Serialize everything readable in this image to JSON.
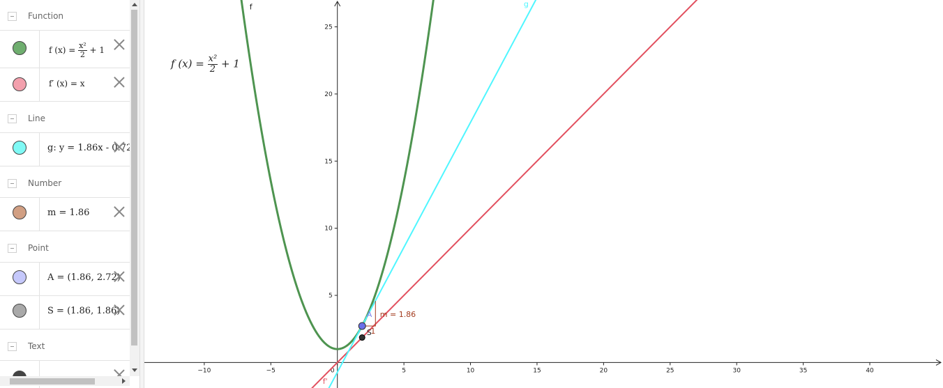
{
  "algebra": {
    "groups": {
      "function": "Function",
      "line": "Line",
      "number": "Number",
      "point": "Point",
      "text": "Text"
    },
    "rows": {
      "f": {
        "lhs": "f (x) =",
        "num": "x²",
        "den": "2",
        "rest": "+ 1",
        "color": "#6fae6f"
      },
      "fprime": {
        "text": "f′ (x) = x",
        "color": "#f3a0ad"
      },
      "g": {
        "text": "g: y = 1.86x - 0.72",
        "color": "#7ff9f5"
      },
      "m": {
        "text": "m = 1.86",
        "color": "#d19f83"
      },
      "A": {
        "text": "A = (1.86, 2.72)",
        "color": "#c5c8fb"
      },
      "S": {
        "text": "S = (1.86, 1.86)",
        "color": "#a9a9a9"
      },
      "text1": {
        "color": "#444444"
      }
    }
  },
  "graphics": {
    "formula": {
      "lhs": "f (x) =",
      "num": "x²",
      "den": "2",
      "rest": "+ 1"
    },
    "labels": {
      "f": "f",
      "g": "g",
      "fprime": "f'",
      "A": "A",
      "S": "S",
      "slope": "m = 1.86",
      "slope_one": "1"
    },
    "x_ticks": [
      "−10",
      "−5",
      "0",
      "5",
      "10",
      "15",
      "20",
      "25",
      "30",
      "35",
      "40"
    ],
    "y_ticks": [
      "5",
      "10",
      "15",
      "20",
      "25"
    ],
    "colors": {
      "f": "#4e9450",
      "g": "#4ff6ff",
      "fprime": "#e2505f",
      "slope": "#a33b1e",
      "A": "#6a70e8",
      "S": "#333333"
    }
  },
  "chart_data": {
    "type": "line",
    "xlim": [
      -14.5,
      45.5
    ],
    "ylim": [
      -1.9,
      27
    ],
    "grid": false,
    "series": [
      {
        "name": "f",
        "expression": "x^2/2 + 1"
      },
      {
        "name": "f'",
        "expression": "x"
      },
      {
        "name": "g",
        "expression": "1.86x - 0.72"
      }
    ],
    "points": [
      {
        "name": "A",
        "x": 1.86,
        "y": 2.72
      },
      {
        "name": "S",
        "x": 1.86,
        "y": 1.86
      }
    ],
    "slope_triangle": {
      "m": 1.86
    }
  }
}
